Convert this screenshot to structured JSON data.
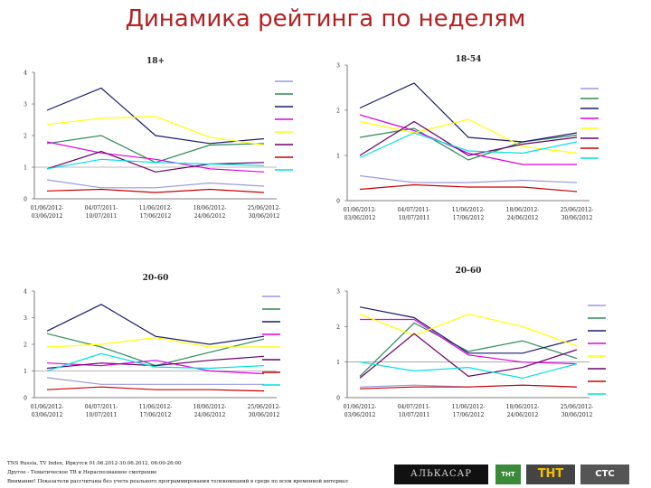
{
  "page": {
    "title": "Динамика рейтинга по неделям"
  },
  "chart_data": [
    {
      "type": "line",
      "title": "18+",
      "categories": [
        "01/06/2012-03/06/2012",
        "04/07/2011-10/07/2011",
        "11/06/2012-17/06/2012",
        "18/06/2012-24/06/2012",
        "25/06/2012-30/06/2012"
      ],
      "ylim": [
        0,
        4
      ],
      "yticks": [
        0,
        1,
        2,
        3,
        4
      ],
      "legend_placement": "right",
      "series": [
        {
          "color": "#9999dd",
          "values": [
            0.6,
            0.35,
            0.35,
            0.5,
            0.4
          ]
        },
        {
          "color": "#2e8b57",
          "values": [
            1.75,
            2.0,
            1.15,
            1.7,
            1.75
          ]
        },
        {
          "color": "#1a1a6e",
          "values": [
            2.8,
            3.5,
            2.0,
            1.75,
            1.9
          ]
        },
        {
          "color": "#e000e0",
          "values": [
            1.8,
            1.45,
            1.25,
            0.95,
            0.85
          ]
        },
        {
          "color": "#ffff00",
          "values": [
            2.35,
            2.55,
            2.6,
            1.95,
            1.7
          ]
        },
        {
          "color": "#6a006a",
          "values": [
            0.95,
            1.5,
            0.85,
            1.1,
            1.15
          ]
        },
        {
          "color": "#cc0000",
          "values": [
            0.25,
            0.3,
            0.2,
            0.3,
            0.2
          ]
        },
        {
          "color": "#00e0e0",
          "values": [
            0.95,
            1.25,
            1.15,
            1.1,
            1.05
          ]
        }
      ]
    },
    {
      "type": "line",
      "title": "18-54",
      "categories": [
        "01/06/2012-03/06/2012",
        "04/07/2011-10/07/2011",
        "11/06/2012-17/06/2012",
        "18/06/2012-24/06/2012",
        "25/06/2012-30/06/2012"
      ],
      "ylim": [
        0,
        3
      ],
      "yticks": [
        0,
        1,
        2,
        3
      ],
      "legend_placement": "right",
      "series": [
        {
          "color": "#9999dd",
          "values": [
            0.55,
            0.4,
            0.4,
            0.45,
            0.4
          ]
        },
        {
          "color": "#2e8b57",
          "values": [
            1.4,
            1.6,
            0.9,
            1.3,
            1.45
          ]
        },
        {
          "color": "#1a1a6e",
          "values": [
            2.05,
            2.6,
            1.4,
            1.3,
            1.5
          ]
        },
        {
          "color": "#e000e0",
          "values": [
            1.9,
            1.55,
            1.05,
            0.8,
            0.8
          ]
        },
        {
          "color": "#ffff00",
          "values": [
            1.75,
            1.5,
            1.8,
            1.2,
            1.05
          ]
        },
        {
          "color": "#6a006a",
          "values": [
            1.0,
            1.75,
            1.0,
            1.25,
            1.4
          ]
        },
        {
          "color": "#cc0000",
          "values": [
            0.25,
            0.35,
            0.3,
            0.3,
            0.2
          ]
        },
        {
          "color": "#00e0e0",
          "values": [
            0.95,
            1.5,
            1.1,
            1.05,
            1.3
          ]
        }
      ]
    },
    {
      "type": "line",
      "title": "20-60",
      "categories": [
        "01/06/2012-03/06/2012",
        "04/07/2011-10/07/2011",
        "11/06/2012-17/06/2012",
        "18/06/2012-24/06/2012",
        "25/06/2012-30/06/2012"
      ],
      "ylim": [
        0,
        4
      ],
      "yticks": [
        0,
        1,
        2,
        3,
        4
      ],
      "legend_placement": "right",
      "series": [
        {
          "color": "#9999dd",
          "values": [
            0.75,
            0.5,
            0.5,
            0.5,
            0.5
          ]
        },
        {
          "color": "#2e8b57",
          "values": [
            2.4,
            1.9,
            1.2,
            1.7,
            2.2
          ]
        },
        {
          "color": "#1a1a6e",
          "values": [
            2.5,
            3.5,
            2.3,
            2.0,
            2.3
          ]
        },
        {
          "color": "#e000e0",
          "values": [
            1.3,
            1.2,
            1.4,
            1.0,
            0.9
          ]
        },
        {
          "color": "#ffff00",
          "values": [
            1.9,
            2.0,
            2.25,
            1.9,
            1.9
          ]
        },
        {
          "color": "#6a006a",
          "values": [
            1.1,
            1.3,
            1.2,
            1.4,
            1.55
          ]
        },
        {
          "color": "#cc0000",
          "values": [
            0.3,
            0.4,
            0.3,
            0.3,
            0.25
          ]
        },
        {
          "color": "#00e0e0",
          "values": [
            1.0,
            1.65,
            1.15,
            1.1,
            1.2
          ]
        }
      ]
    },
    {
      "type": "line",
      "title": "20-60",
      "categories": [
        "01/06/2012-03/06/2012",
        "04/07/2011-10/07/2011",
        "11/06/2012-17/06/2012",
        "18/06/2012-24/06/2012",
        "25/06/2012-30/06/2012"
      ],
      "ylim": [
        0,
        3
      ],
      "yticks": [
        0,
        1,
        2,
        3
      ],
      "legend_placement": "right",
      "series": [
        {
          "color": "#9999dd",
          "values": [
            0.3,
            0.35,
            0.3,
            0.35,
            0.3
          ]
        },
        {
          "color": "#2e8b57",
          "values": [
            0.6,
            2.1,
            1.3,
            1.6,
            1.1
          ]
        },
        {
          "color": "#1a1a6e",
          "values": [
            2.55,
            2.25,
            1.25,
            1.25,
            1.65
          ]
        },
        {
          "color": "#e000e0",
          "values": [
            2.2,
            2.2,
            1.2,
            1.0,
            0.95
          ]
        },
        {
          "color": "#ffff00",
          "values": [
            2.35,
            1.75,
            2.35,
            2.0,
            1.45
          ]
        },
        {
          "color": "#6a006a",
          "values": [
            0.55,
            1.8,
            0.6,
            0.85,
            1.35
          ]
        },
        {
          "color": "#cc0000",
          "values": [
            0.25,
            0.3,
            0.3,
            0.35,
            0.3
          ]
        },
        {
          "color": "#00e0e0",
          "values": [
            1.0,
            0.75,
            0.85,
            0.55,
            0.95
          ]
        }
      ]
    }
  ],
  "footer": {
    "line1": "TNS Russia, TV Index, Иркутск 01.06.2012-30.06.2012, 06:00-26:00",
    "line2": "Другое - Тематическое ТВ и Нераспознанное смотрение",
    "line3": "Внимание! Показатели рассчитаны без учета реального программирования телекомпаний в среде по всем временной интервал"
  },
  "logos": {
    "logo1": "АЛЬКАСАР",
    "logo2": "ТНТ",
    "logo3": "ТНТ",
    "logo4": "CTC"
  }
}
